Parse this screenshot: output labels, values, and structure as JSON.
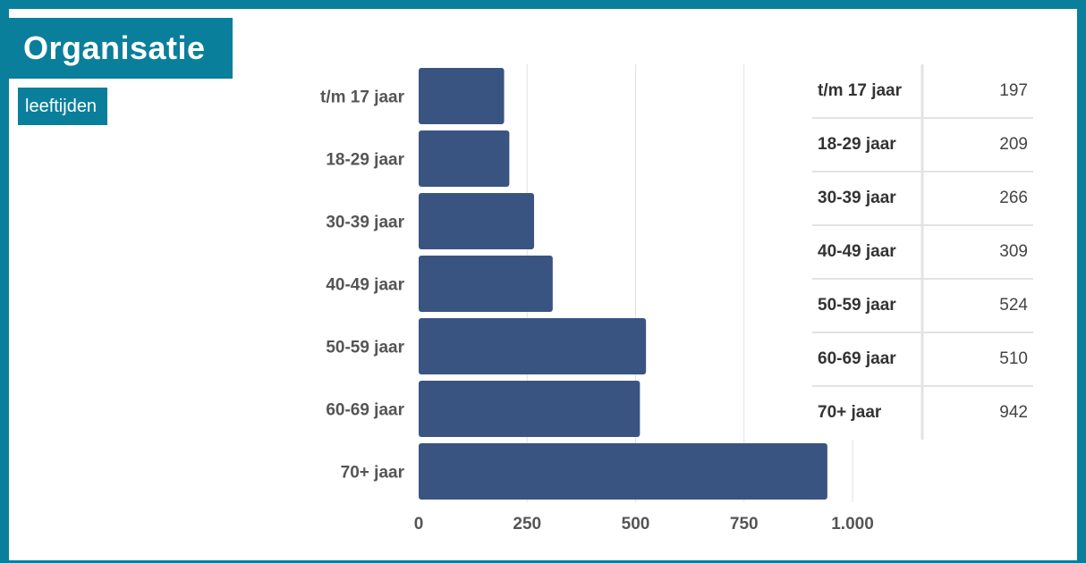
{
  "header": {
    "title": "Organisatie",
    "subtitle": "leeftijden"
  },
  "colors": {
    "frame": "#0a7f9b",
    "bar": "#3a5482",
    "grid": "#e2e2e2"
  },
  "chart_data": {
    "type": "bar",
    "orientation": "horizontal",
    "categories": [
      "t/m 17 jaar",
      "18-29 jaar",
      "30-39 jaar",
      "40-49 jaar",
      "50-59 jaar",
      "60-69 jaar",
      "70+ jaar"
    ],
    "values": [
      197,
      209,
      266,
      309,
      524,
      510,
      942
    ],
    "xlim": [
      0,
      1000
    ],
    "xticks": [
      0,
      250,
      500,
      750,
      1000
    ],
    "xtick_labels": [
      "0",
      "250",
      "500",
      "750",
      "1.000"
    ],
    "grid": true,
    "table": {
      "rows": [
        {
          "label": "t/m 17 jaar",
          "value": "197"
        },
        {
          "label": "18-29 jaar",
          "value": "209"
        },
        {
          "label": "30-39 jaar",
          "value": "266"
        },
        {
          "label": "40-49 jaar",
          "value": "309"
        },
        {
          "label": "50-59 jaar",
          "value": "524"
        },
        {
          "label": "60-69 jaar",
          "value": "510"
        },
        {
          "label": "70+ jaar",
          "value": "942"
        }
      ]
    }
  }
}
